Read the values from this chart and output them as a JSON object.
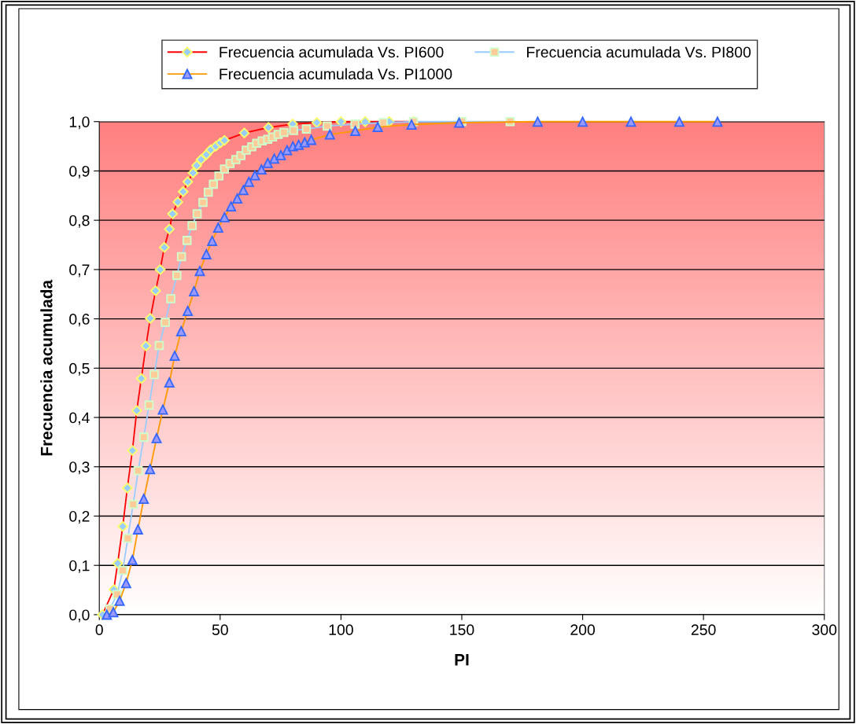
{
  "chart_data": {
    "type": "line",
    "xlabel": "PI",
    "ylabel": "Frecuencia acumulada",
    "xlim": [
      0,
      300
    ],
    "xticks": [
      0,
      50,
      100,
      150,
      200,
      250,
      300
    ],
    "ylim": [
      0,
      1
    ],
    "yticks": [
      {
        "value": 0,
        "label": "0,0"
      },
      {
        "value": 0.1,
        "label": "0,1"
      },
      {
        "value": 0.2,
        "label": "0,2"
      },
      {
        "value": 0.3,
        "label": "0,3"
      },
      {
        "value": 0.4,
        "label": "0,4"
      },
      {
        "value": 0.5,
        "label": "0,5"
      },
      {
        "value": 0.6,
        "label": "0,6"
      },
      {
        "value": 0.7,
        "label": "0,7"
      },
      {
        "value": 0.8,
        "label": "0,8"
      },
      {
        "value": 0.9,
        "label": "0,9"
      },
      {
        "value": 1,
        "label": "1,0"
      }
    ],
    "grid": "y",
    "legend": "top",
    "series": [
      {
        "name": "Frecuencia acumulada Vs. PI600",
        "color": "#ff0000",
        "marker": "diamond",
        "x": [
          1.3,
          6.0,
          7.6,
          9.7,
          11.6,
          13.7,
          15.5,
          17.4,
          19.3,
          21.1,
          23.3,
          25.2,
          26.9,
          29.0,
          30.3,
          32.5,
          34.7,
          36.6,
          38.8,
          40.3,
          42.1,
          44.3,
          46.1,
          48.2,
          50.1,
          51.8,
          60,
          70,
          80,
          90,
          100,
          110,
          120,
          130
        ],
        "values": [
          0.0,
          0.051,
          0.104,
          0.179,
          0.257,
          0.333,
          0.414,
          0.479,
          0.545,
          0.601,
          0.657,
          0.7,
          0.745,
          0.782,
          0.813,
          0.837,
          0.858,
          0.878,
          0.896,
          0.911,
          0.923,
          0.933,
          0.943,
          0.95,
          0.957,
          0.962,
          0.977,
          0.988,
          0.995,
          0.998,
          1.0,
          1.0,
          1.0,
          1.0
        ]
      },
      {
        "name": "Frecuencia acumulada Vs. PI800",
        "color": "#99ccff",
        "marker": "square",
        "x": [
          4.4,
          7.4,
          9.7,
          11.8,
          14.0,
          16.1,
          18.4,
          20.6,
          22.7,
          24.8,
          27.3,
          29.6,
          32.1,
          34.0,
          36.3,
          38.4,
          40.5,
          42.9,
          45.1,
          47.2,
          49.5,
          51.8,
          54.1,
          56.5,
          58.6,
          60.8,
          63.1,
          65.1,
          67.4,
          69.7,
          71.7,
          74.0,
          76.4,
          80.4,
          85.7,
          94.3,
          105.8,
          117.5,
          130,
          150,
          170
        ],
        "values": [
          0.012,
          0.041,
          0.09,
          0.155,
          0.224,
          0.292,
          0.36,
          0.425,
          0.487,
          0.546,
          0.593,
          0.641,
          0.688,
          0.726,
          0.759,
          0.789,
          0.813,
          0.836,
          0.857,
          0.873,
          0.89,
          0.904,
          0.915,
          0.923,
          0.931,
          0.942,
          0.949,
          0.956,
          0.961,
          0.964,
          0.969,
          0.974,
          0.978,
          0.982,
          0.985,
          0.991,
          0.995,
          0.998,
          1.0,
          1.0,
          1.0
        ]
      },
      {
        "name": "Frecuencia acumulada Vs. PI1000",
        "color": "#ff9900",
        "marker": "triangle",
        "x": [
          3.1,
          5.8,
          8.4,
          11.1,
          13.7,
          16.0,
          18.4,
          21.0,
          23.7,
          26.3,
          29.0,
          31.2,
          33.9,
          36.6,
          39.2,
          41.6,
          44.3,
          46.7,
          49.2,
          51.8,
          54.5,
          57.1,
          59.6,
          61.9,
          64.4,
          67.1,
          69.7,
          72.4,
          75.1,
          77.7,
          80.1,
          82.5,
          85.0,
          87.7,
          95.4,
          105.9,
          115.2,
          129.2,
          148.9,
          181.4,
          200,
          220,
          240,
          255.8
        ],
        "values": [
          0.0,
          0.005,
          0.028,
          0.064,
          0.111,
          0.173,
          0.235,
          0.295,
          0.358,
          0.416,
          0.471,
          0.525,
          0.575,
          0.616,
          0.656,
          0.697,
          0.731,
          0.758,
          0.785,
          0.806,
          0.828,
          0.844,
          0.861,
          0.878,
          0.891,
          0.903,
          0.916,
          0.925,
          0.932,
          0.942,
          0.95,
          0.953,
          0.958,
          0.963,
          0.974,
          0.981,
          0.989,
          0.994,
          0.998,
          1.0,
          1.0,
          1.0,
          1.0,
          1.0
        ]
      }
    ]
  }
}
